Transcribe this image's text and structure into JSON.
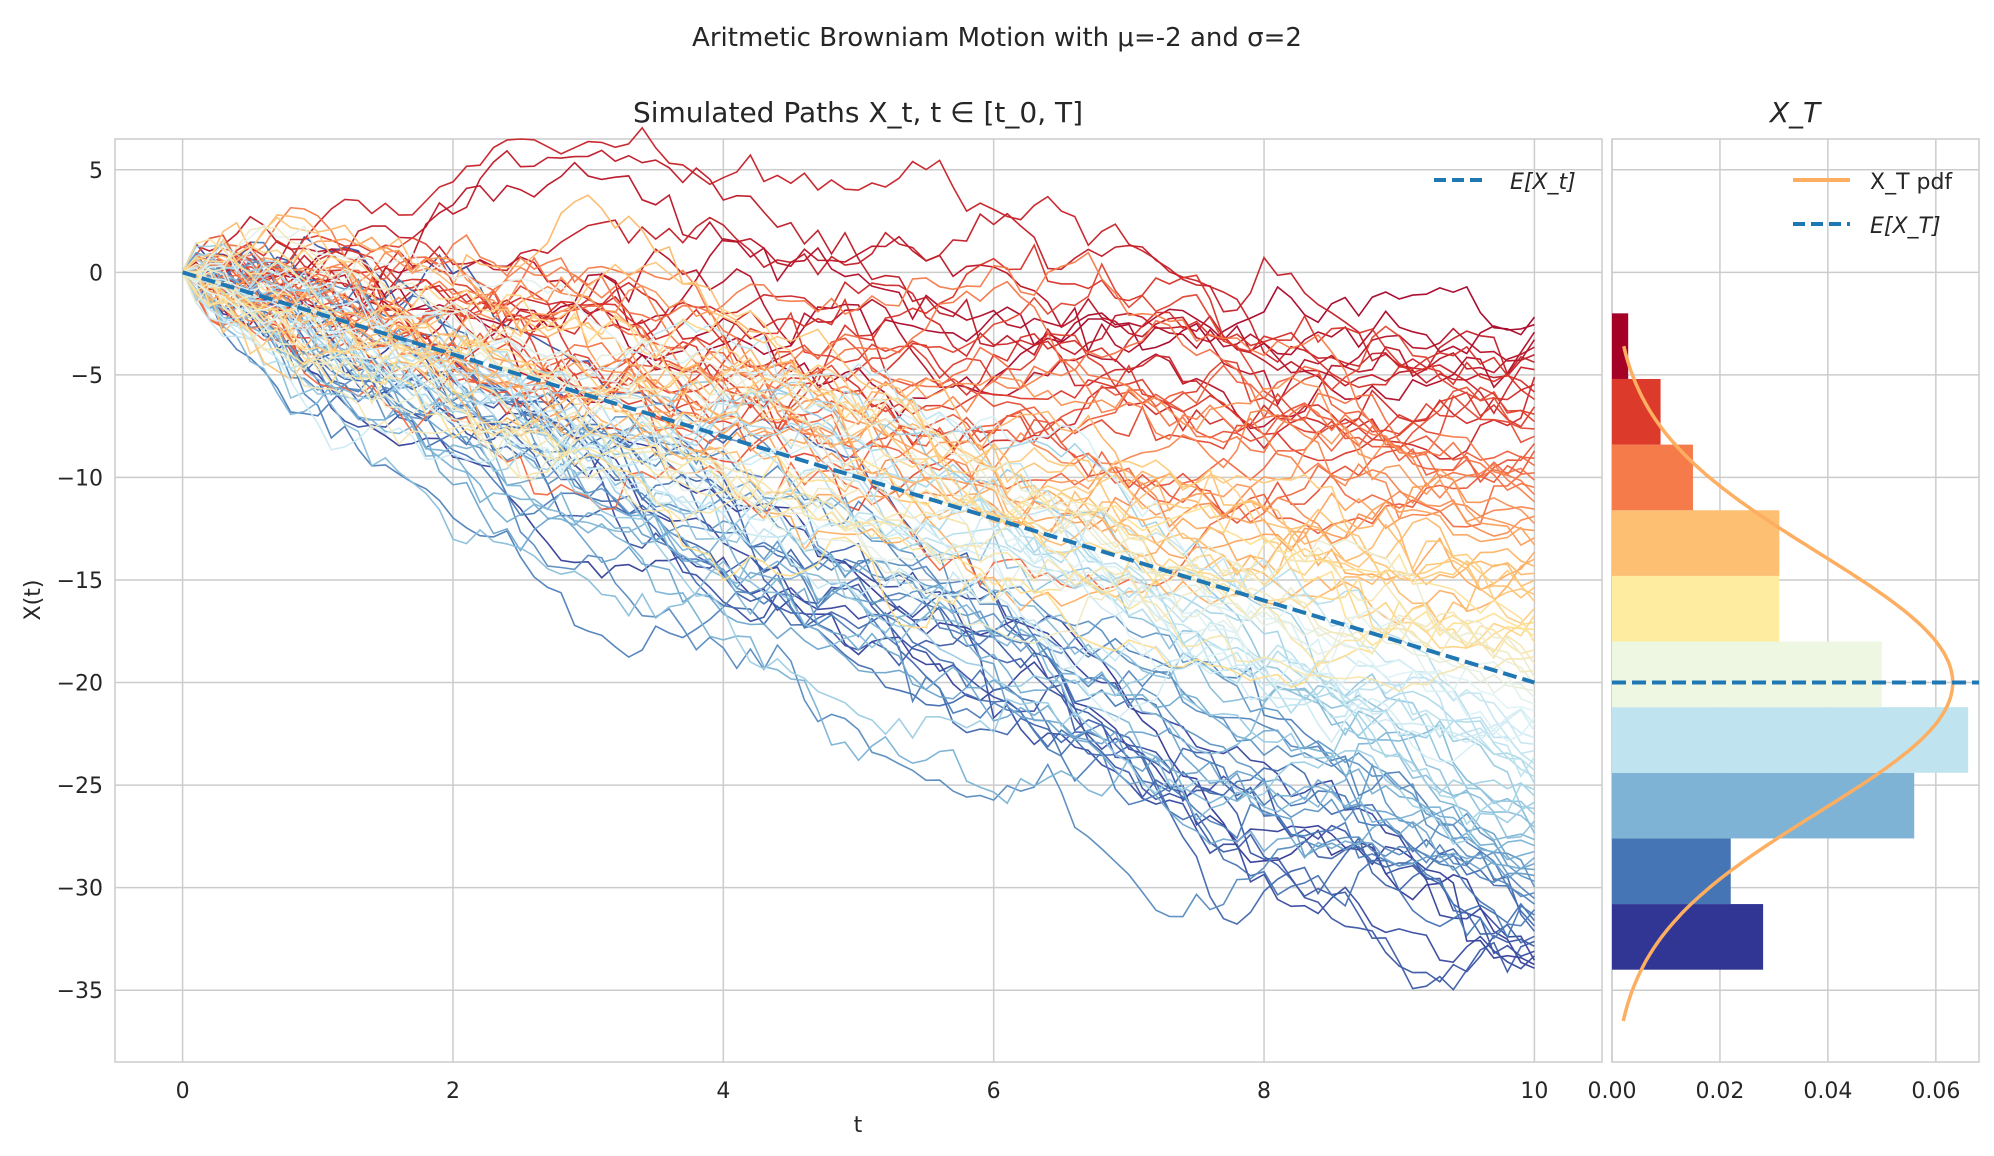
{
  "figure": {
    "suptitle": "Aritmetic Browniam Motion with μ=-2 and σ=2"
  },
  "chart_data": [
    {
      "type": "line",
      "title": "Simulated Paths X_t, t ∈ [t_0, T]",
      "xlabel": "t",
      "ylabel": "X(t)",
      "xlim": [
        -0.5,
        10.5
      ],
      "ylim": [
        -38.5,
        6.5
      ],
      "xticks": [
        0,
        2,
        4,
        6,
        8,
        10
      ],
      "yticks": [
        5,
        0,
        -5,
        -10,
        -15,
        -20,
        -25,
        -30,
        -35
      ],
      "grid": true,
      "legend": {
        "position": "top-right",
        "entries": [
          "E[X_t]"
        ]
      },
      "mean_line": {
        "name": "E[X_t]",
        "x": [
          0,
          10
        ],
        "y": [
          0,
          -20
        ],
        "color": "#1f77b4",
        "style": "dashed"
      },
      "paths": {
        "count": 100,
        "t_range": [
          0,
          10
        ],
        "steps": 100,
        "mu": -2,
        "sigma": 2,
        "final_value_range": [
          -34,
          -2
        ],
        "colormap": [
          "#313695",
          "#4575b4",
          "#74add1",
          "#abd9e9",
          "#e0f3f8",
          "#fee090",
          "#fdae61",
          "#f46d43",
          "#d73027",
          "#a50026"
        ]
      }
    },
    {
      "type": "bar",
      "orientation": "horizontal",
      "title": "X_T",
      "xlim": [
        0,
        0.068
      ],
      "ylim": [
        -38.5,
        6.5
      ],
      "xticks": [
        0.0,
        0.02,
        0.04,
        0.06
      ],
      "xtick_labels": [
        "0.00",
        "0.02",
        "0.04",
        "0.06"
      ],
      "grid": true,
      "legend": {
        "position": "top-right",
        "entries": [
          "X_T pdf",
          "E[X_T]"
        ]
      },
      "bins": [
        {
          "lo": -34.0,
          "hi": -30.8,
          "density": 0.028,
          "color": "#313695"
        },
        {
          "lo": -30.8,
          "hi": -27.6,
          "density": 0.022,
          "color": "#4575b4"
        },
        {
          "lo": -27.6,
          "hi": -24.4,
          "density": 0.056,
          "color": "#7fb3d5"
        },
        {
          "lo": -24.4,
          "hi": -21.2,
          "density": 0.066,
          "color": "#c0e4ef"
        },
        {
          "lo": -21.2,
          "hi": -18.0,
          "density": 0.05,
          "color": "#eef7e2"
        },
        {
          "lo": -18.0,
          "hi": -14.8,
          "density": 0.031,
          "color": "#feeda1"
        },
        {
          "lo": -14.8,
          "hi": -11.6,
          "density": 0.031,
          "color": "#fdbf71"
        },
        {
          "lo": -11.6,
          "hi": -8.4,
          "density": 0.015,
          "color": "#f67b4a"
        },
        {
          "lo": -8.4,
          "hi": -5.2,
          "density": 0.009,
          "color": "#dc3b2c"
        },
        {
          "lo": -5.2,
          "hi": -2.0,
          "density": 0.003,
          "color": "#a50026"
        }
      ],
      "pdf": {
        "name": "X_T pdf",
        "mean": -20,
        "std": 6.32,
        "y_range": [
          -36.5,
          -3.6
        ],
        "color": "#fdae61"
      },
      "mean_line": {
        "name": "E[X_T]",
        "y": -20,
        "color": "#1f77b4",
        "style": "dashed"
      }
    }
  ]
}
